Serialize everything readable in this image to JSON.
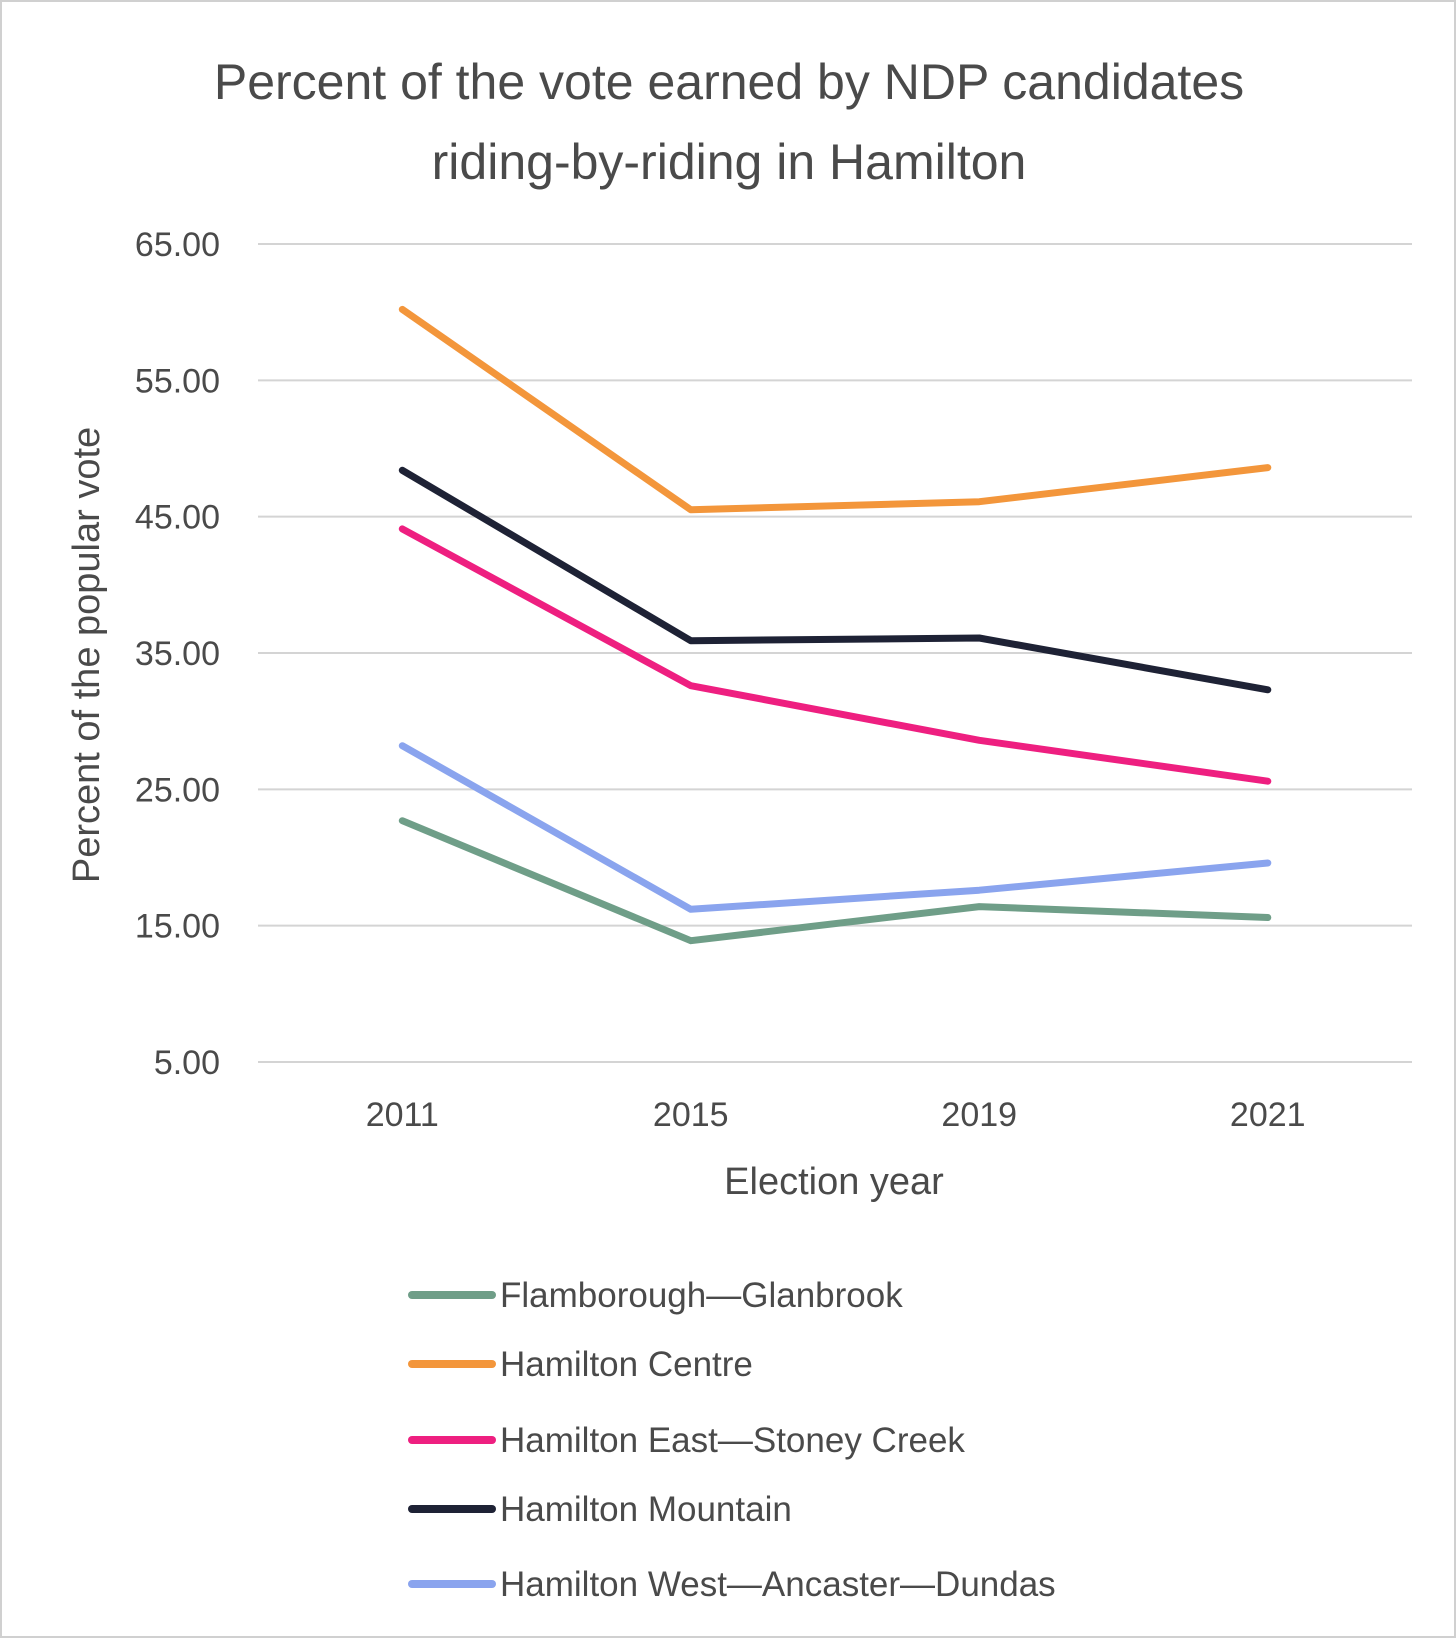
{
  "chart_data": {
    "type": "line",
    "title": "Percent of the vote earned by NDP candidates riding-by-riding in Hamilton",
    "title_lines": [
      "Percent of the vote earned by NDP candidates",
      "riding-by-riding in Hamilton"
    ],
    "xlabel": "Election year",
    "ylabel": "Percent of the popular vote",
    "categories": [
      "2011",
      "2015",
      "2019",
      "2021"
    ],
    "ylim": [
      5,
      65
    ],
    "yticks": [
      "5.00",
      "15.00",
      "25.00",
      "35.00",
      "45.00",
      "55.00",
      "65.00"
    ],
    "ytick_values": [
      5,
      15,
      25,
      35,
      45,
      55,
      65
    ],
    "grid": true,
    "legend_position": "bottom",
    "series": [
      {
        "name": "Flamborough—Glanbrook",
        "color": "#6f9e88",
        "values": [
          22.7,
          13.9,
          16.4,
          15.6
        ]
      },
      {
        "name": "Hamilton Centre",
        "color": "#f3963b",
        "values": [
          60.2,
          45.5,
          46.1,
          48.6
        ]
      },
      {
        "name": "Hamilton East—Stoney Creek",
        "color": "#ee1f80",
        "values": [
          44.1,
          32.6,
          28.6,
          25.6
        ]
      },
      {
        "name": "Hamilton Mountain",
        "color": "#1e2235",
        "values": [
          48.4,
          35.9,
          36.1,
          32.3
        ]
      },
      {
        "name": "Hamilton West—Ancaster—Dundas",
        "color": "#8aa4ee",
        "values": [
          28.2,
          16.2,
          17.6,
          19.6
        ]
      }
    ]
  }
}
